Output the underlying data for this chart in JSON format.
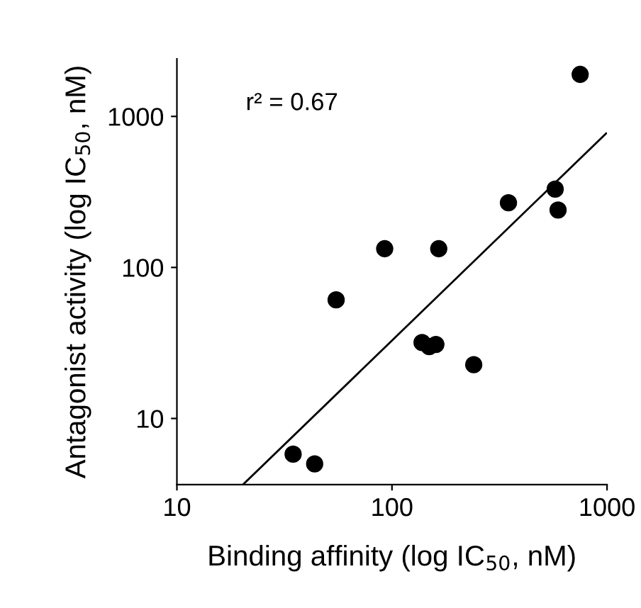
{
  "chart_data": {
    "type": "scatter",
    "xlabel": "Binding affinity (log IC$_{50}$, nM)",
    "ylabel": "Antagonist activity (log IC$_{50}$, nM)",
    "log": "xy",
    "xlim": [
      10,
      1000
    ],
    "ylim": [
      3.65,
      2400
    ],
    "xticks": [
      10,
      100,
      1000
    ],
    "yticks": [
      10,
      100,
      1000
    ],
    "grid": false,
    "legend": false,
    "annotations": [
      "r² = 0.67"
    ],
    "series": [
      {
        "marker": "circle",
        "color": "#000000",
        "x": [
          34.7,
          43.7,
          55,
          92.5,
          165,
          138,
          149,
          160,
          240,
          348,
          574,
          592,
          750
        ],
        "values": [
          5.8,
          5.0,
          61,
          133,
          133,
          31.8,
          29.9,
          30.9,
          22.7,
          268,
          330,
          240,
          1897
        ]
      },
      {
        "type": "line",
        "marker": "none",
        "color": "#000000",
        "x": [
          20.3,
          991
        ],
        "values": [
          3.65,
          772
        ]
      }
    ]
  }
}
